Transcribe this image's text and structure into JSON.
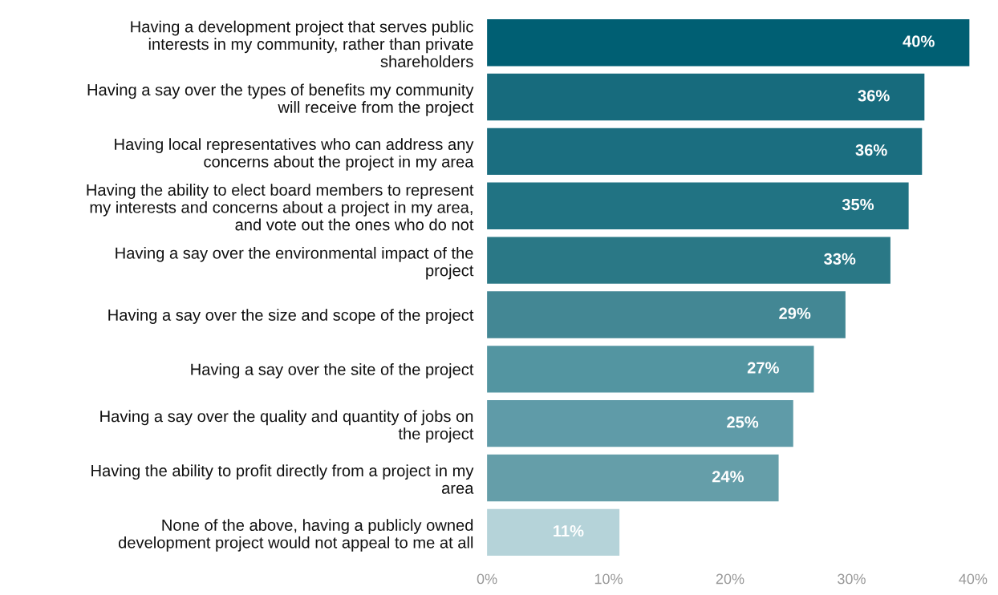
{
  "chart_data": {
    "type": "bar",
    "orientation": "horizontal",
    "categories": [
      "Having a development project that serves public\ninterests in my community, rather than private\nshareholders",
      "Having a say over the types of benefits my community\nwill receive from the project",
      "Having local representatives who can address any\nconcerns about the project in my area",
      "Having the ability to elect board members to represent\nmy interests and concerns about a project in my area,\nand vote out the ones who do not",
      "Having a say over the environmental impact of the\nproject",
      "Having a say over the size and scope of the project",
      "Having a say over the site of the project",
      "Having a say over the quality and quantity of jobs on\nthe project",
      "Having the ability to profit directly from a project in my\narea",
      "None of the above, having a publicly owned\ndevelopment project would not appeal to me at all"
    ],
    "values": [
      39.7,
      36.0,
      35.8,
      34.7,
      33.2,
      29.5,
      26.9,
      25.2,
      24.0,
      10.9
    ],
    "value_labels": [
      "40%",
      "36%",
      "36%",
      "35%",
      "33%",
      "29%",
      "27%",
      "25%",
      "24%",
      "11%"
    ],
    "colors": [
      "#005f73",
      "#176b7d",
      "#1b6e80",
      "#217383",
      "#2a7886",
      "#438794",
      "#5395a1",
      "#5f9ba8",
      "#659ea9",
      "#b5d3d9"
    ],
    "xlim": [
      0,
      40
    ],
    "xticks": [
      {
        "value": 0,
        "label": "0%"
      },
      {
        "value": 10,
        "label": "10%"
      },
      {
        "value": 20,
        "label": "20%"
      },
      {
        "value": 30,
        "label": "30%"
      },
      {
        "value": 40,
        "label": "40%"
      }
    ],
    "grid": false,
    "legend": false
  }
}
